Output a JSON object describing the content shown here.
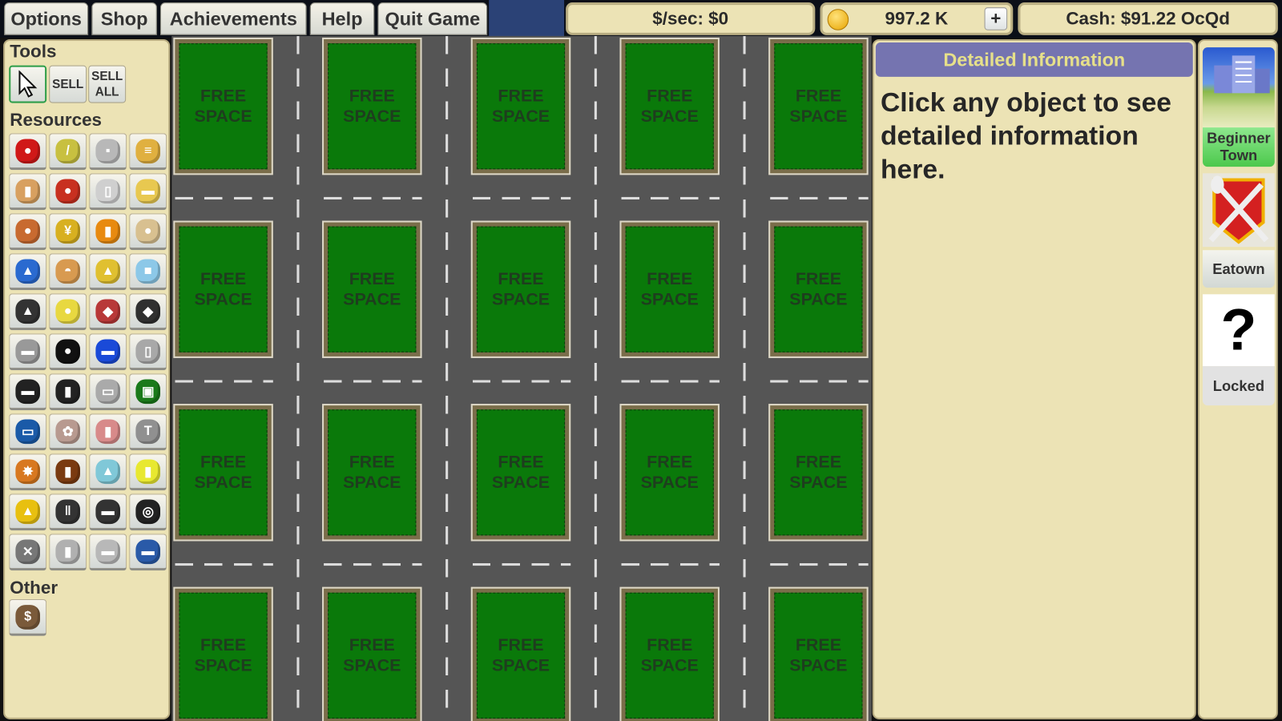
{
  "menu": {
    "items": [
      {
        "label": "Options"
      },
      {
        "label": "Shop"
      },
      {
        "label": "Achievements"
      },
      {
        "label": "Help"
      },
      {
        "label": "Quit Game"
      }
    ]
  },
  "stats": {
    "per_sec": "$/sec: $0",
    "coins": "997.2 K",
    "coin_icon": "gold-coin-icon",
    "plus_label": "+",
    "cash": "Cash: $91.22 OcQd"
  },
  "tools": {
    "title": "Tools",
    "pointer_icon": "cursor-icon",
    "sell": "SELL",
    "sell_all": "SELL ALL"
  },
  "resources": {
    "title": "Resources",
    "items": [
      {
        "name": "apple",
        "glyph": "●",
        "color": "#d01818"
      },
      {
        "name": "sugarcane",
        "glyph": "/",
        "color": "#c8c040"
      },
      {
        "name": "sugar-cubes",
        "glyph": "▪",
        "color": "#b8b8b8"
      },
      {
        "name": "wood",
        "glyph": "≡",
        "color": "#e0b040"
      },
      {
        "name": "juice-carton",
        "glyph": "▮",
        "color": "#d8a060"
      },
      {
        "name": "apple-juice",
        "glyph": "●",
        "color": "#c83020"
      },
      {
        "name": "milk",
        "glyph": "▯",
        "color": "#cfcfcf"
      },
      {
        "name": "butter",
        "glyph": "▬",
        "color": "#e8c850"
      },
      {
        "name": "egg",
        "glyph": "●",
        "color": "#c86a30"
      },
      {
        "name": "wheat",
        "glyph": "¥",
        "color": "#d8b020"
      },
      {
        "name": "flour",
        "glyph": "▮",
        "color": "#e88a10"
      },
      {
        "name": "bread",
        "glyph": "●",
        "color": "#d8c090"
      },
      {
        "name": "gas",
        "glyph": "▲",
        "color": "#2a6ad0"
      },
      {
        "name": "pie",
        "glyph": "◓",
        "color": "#d89a50"
      },
      {
        "name": "sand",
        "glyph": "▲",
        "color": "#e0c030"
      },
      {
        "name": "glass",
        "glyph": "■",
        "color": "#8cc8e8"
      },
      {
        "name": "coal",
        "glyph": "▲",
        "color": "#333333"
      },
      {
        "name": "lightbulb",
        "glyph": "●",
        "color": "#e8d840"
      },
      {
        "name": "ore",
        "glyph": "◆",
        "color": "#b83838"
      },
      {
        "name": "rock",
        "glyph": "◆",
        "color": "#303030"
      },
      {
        "name": "iron-ingot",
        "glyph": "▬",
        "color": "#999999"
      },
      {
        "name": "oil",
        "glyph": "●",
        "color": "#111111"
      },
      {
        "name": "plastic",
        "glyph": "▬",
        "color": "#1a4ad8"
      },
      {
        "name": "aluminum",
        "glyph": "▯",
        "color": "#a8a8a8"
      },
      {
        "name": "silicon-wafer",
        "glyph": "▬",
        "color": "#222222"
      },
      {
        "name": "chip",
        "glyph": "▮",
        "color": "#222222"
      },
      {
        "name": "circuit-board",
        "glyph": "▭",
        "color": "#aaaaaa"
      },
      {
        "name": "cpu",
        "glyph": "▣",
        "color": "#1a7a1a"
      },
      {
        "name": "computer",
        "glyph": "▭",
        "color": "#1a5aa8"
      },
      {
        "name": "cotton",
        "glyph": "✿",
        "color": "#b89a90"
      },
      {
        "name": "thread",
        "glyph": "▮",
        "color": "#d88a8a"
      },
      {
        "name": "t-shirt",
        "glyph": "T",
        "color": "#909090"
      },
      {
        "name": "leather",
        "glyph": "✸",
        "color": "#d87820"
      },
      {
        "name": "jacket",
        "glyph": "▮",
        "color": "#7a3a10"
      },
      {
        "name": "chemicals",
        "glyph": "▲",
        "color": "#80c8d8"
      },
      {
        "name": "yellow-thread",
        "glyph": "▮",
        "color": "#e8e830"
      },
      {
        "name": "skirt",
        "glyph": "▲",
        "color": "#e8c010"
      },
      {
        "name": "pipes",
        "glyph": "‖",
        "color": "#333333"
      },
      {
        "name": "shoe",
        "glyph": "▬",
        "color": "#333333"
      },
      {
        "name": "tire",
        "glyph": "◎",
        "color": "#222222"
      },
      {
        "name": "engine",
        "glyph": "✕",
        "color": "#777777"
      },
      {
        "name": "car-seat",
        "glyph": "▮",
        "color": "#b0b0b0"
      },
      {
        "name": "silver-car",
        "glyph": "▬",
        "color": "#b8b8b8"
      },
      {
        "name": "blue-car",
        "glyph": "▬",
        "color": "#2a5aa8"
      }
    ]
  },
  "other": {
    "title": "Other",
    "items": [
      {
        "name": "stock-ticker",
        "glyph": "$",
        "color": "#7a5a3a"
      }
    ]
  },
  "map": {
    "lot_label": "FREE SPACE",
    "rows": 4,
    "cols": 5,
    "grass_color": "#0a790a",
    "road_color": "#555555"
  },
  "info": {
    "title": "Detailed Information",
    "body": "Click any object to see detailed information here."
  },
  "towns": [
    {
      "label": "Beginner Town",
      "state": "current"
    },
    {
      "label": "Eatown",
      "state": "available"
    },
    {
      "label": "Locked",
      "state": "locked",
      "glyph": "?"
    }
  ]
}
